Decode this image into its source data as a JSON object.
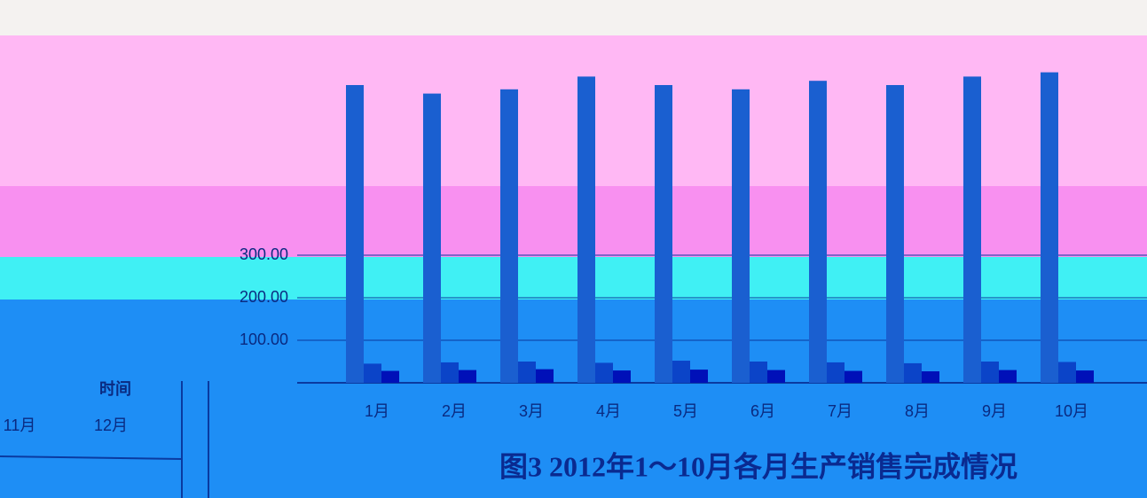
{
  "chart_data": {
    "type": "bar",
    "title": "图3 2012年1～10月各月生产销售完成情况",
    "categories": [
      "1月",
      "2月",
      "3月",
      "4月",
      "5月",
      "6月",
      "7月",
      "8月",
      "9月",
      "10月"
    ],
    "series": [
      {
        "color": "#1a5fd0",
        "values": [
          700,
          680,
          690,
          720,
          700,
          690,
          710,
          700,
          720,
          730
        ]
      },
      {
        "color": "#0b44c8",
        "values": [
          45,
          48,
          50,
          47,
          52,
          50,
          48,
          46,
          50,
          49
        ]
      },
      {
        "color": "#0010b8",
        "values": [
          28,
          30,
          32,
          29,
          31,
          30,
          28,
          27,
          30,
          29
        ]
      }
    ],
    "ylim": [
      0,
      800
    ],
    "yticks": [
      {
        "value": 100,
        "label": "100.00"
      },
      {
        "value": 200,
        "label": "200.00"
      },
      {
        "value": 300,
        "label": "300.00"
      }
    ],
    "grid": true
  },
  "left_table": {
    "header": "时间",
    "columns": [
      "11月",
      "12月"
    ]
  }
}
